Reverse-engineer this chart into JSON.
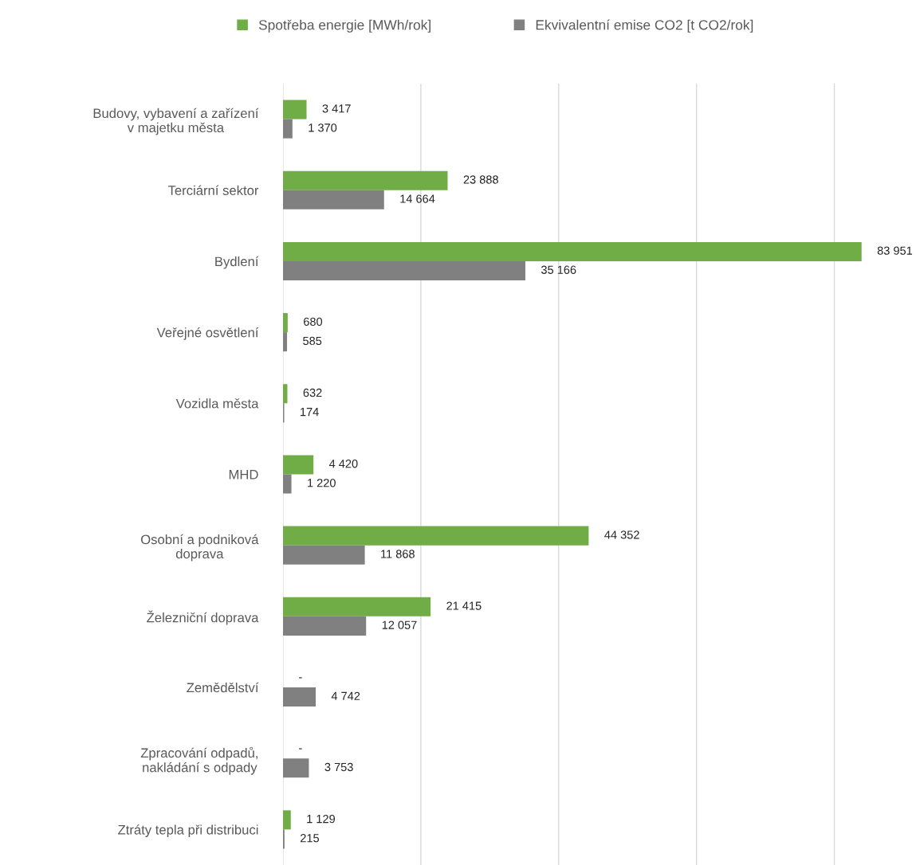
{
  "chart_data": {
    "type": "bar",
    "orientation": "horizontal",
    "categories": [
      "Budovy, vybavení a zařízení\nv majetku města",
      "Terciární sektor",
      "Bydlení",
      "Veřejné osvětlení",
      "Vozidla města",
      "MHD",
      "Osobní a podniková\ndoprava",
      "Železniční doprava",
      "Zemědělství",
      "Zpracování odpadů,\nnakládání s odpady",
      "Ztráty tepla při distribuci"
    ],
    "series": [
      {
        "name": "Spotřeba energie [MWh/rok]",
        "color": "#70ad47",
        "values": [
          3417,
          23888,
          83951,
          680,
          632,
          4420,
          44352,
          21415,
          null,
          null,
          1129
        ],
        "value_labels": [
          "3 417",
          "23 888",
          "83 951",
          "680",
          "632",
          "4 420",
          "44 352",
          "21 415",
          "-",
          "-",
          "1 129"
        ]
      },
      {
        "name": "Ekvivalentní emise CO2 [t CO2/rok]",
        "color": "#808080",
        "values": [
          1370,
          14664,
          35166,
          585,
          174,
          1220,
          11868,
          12057,
          4742,
          3753,
          215
        ],
        "value_labels": [
          "1 370",
          "14 664",
          "35 166",
          "585",
          "174",
          "1 220",
          "11 868",
          "12 057",
          "4 742",
          "3 753",
          "215"
        ]
      }
    ],
    "xticks": [
      {
        "value": 0,
        "label": null
      },
      {
        "value": 20000,
        "label": null
      },
      {
        "value": 40000,
        "label": null
      },
      {
        "value": 60000,
        "label": null
      },
      {
        "value": 80000,
        "label": null
      }
    ],
    "grid": "x",
    "legend": "top"
  }
}
